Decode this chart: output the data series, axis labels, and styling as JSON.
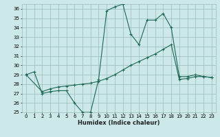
{
  "xlabel": "Humidex (Indice chaleur)",
  "bg_color": "#cce8e8",
  "grid_color": "#99bbbb",
  "line_color": "#1a6655",
  "xlim": [
    -0.5,
    23.5
  ],
  "ylim": [
    25,
    36.5
  ],
  "xticks": [
    0,
    1,
    2,
    3,
    4,
    5,
    6,
    7,
    8,
    9,
    10,
    11,
    12,
    13,
    14,
    15,
    16,
    17,
    18,
    19,
    20,
    21,
    22,
    23
  ],
  "yticks": [
    25,
    26,
    27,
    28,
    29,
    30,
    31,
    32,
    33,
    34,
    35,
    36
  ],
  "curve1_x": [
    0,
    1,
    2,
    3,
    4,
    5,
    6,
    7,
    8,
    9,
    10,
    11,
    12,
    13,
    14,
    15,
    16,
    17,
    18,
    19,
    20,
    21,
    22,
    23
  ],
  "curve1_y": [
    29.0,
    29.3,
    27.0,
    27.2,
    27.3,
    27.3,
    26.0,
    25.0,
    25.0,
    28.5,
    35.8,
    36.2,
    36.5,
    33.3,
    32.2,
    34.8,
    34.8,
    35.5,
    34.0,
    28.8,
    28.8,
    29.0,
    28.8,
    28.7
  ],
  "curve2_x": [
    0,
    2,
    3,
    4,
    5,
    6,
    7,
    8,
    9,
    10,
    11,
    12,
    13,
    14,
    15,
    16,
    17,
    18,
    19,
    20,
    21,
    22,
    23
  ],
  "curve2_y": [
    29.0,
    27.2,
    27.5,
    27.7,
    27.8,
    27.9,
    28.0,
    28.1,
    28.3,
    28.6,
    29.0,
    29.5,
    30.0,
    30.4,
    30.8,
    31.2,
    31.7,
    32.2,
    28.5,
    28.6,
    28.8,
    28.8,
    28.7
  ],
  "figwidth": 3.2,
  "figheight": 2.0,
  "dpi": 100
}
